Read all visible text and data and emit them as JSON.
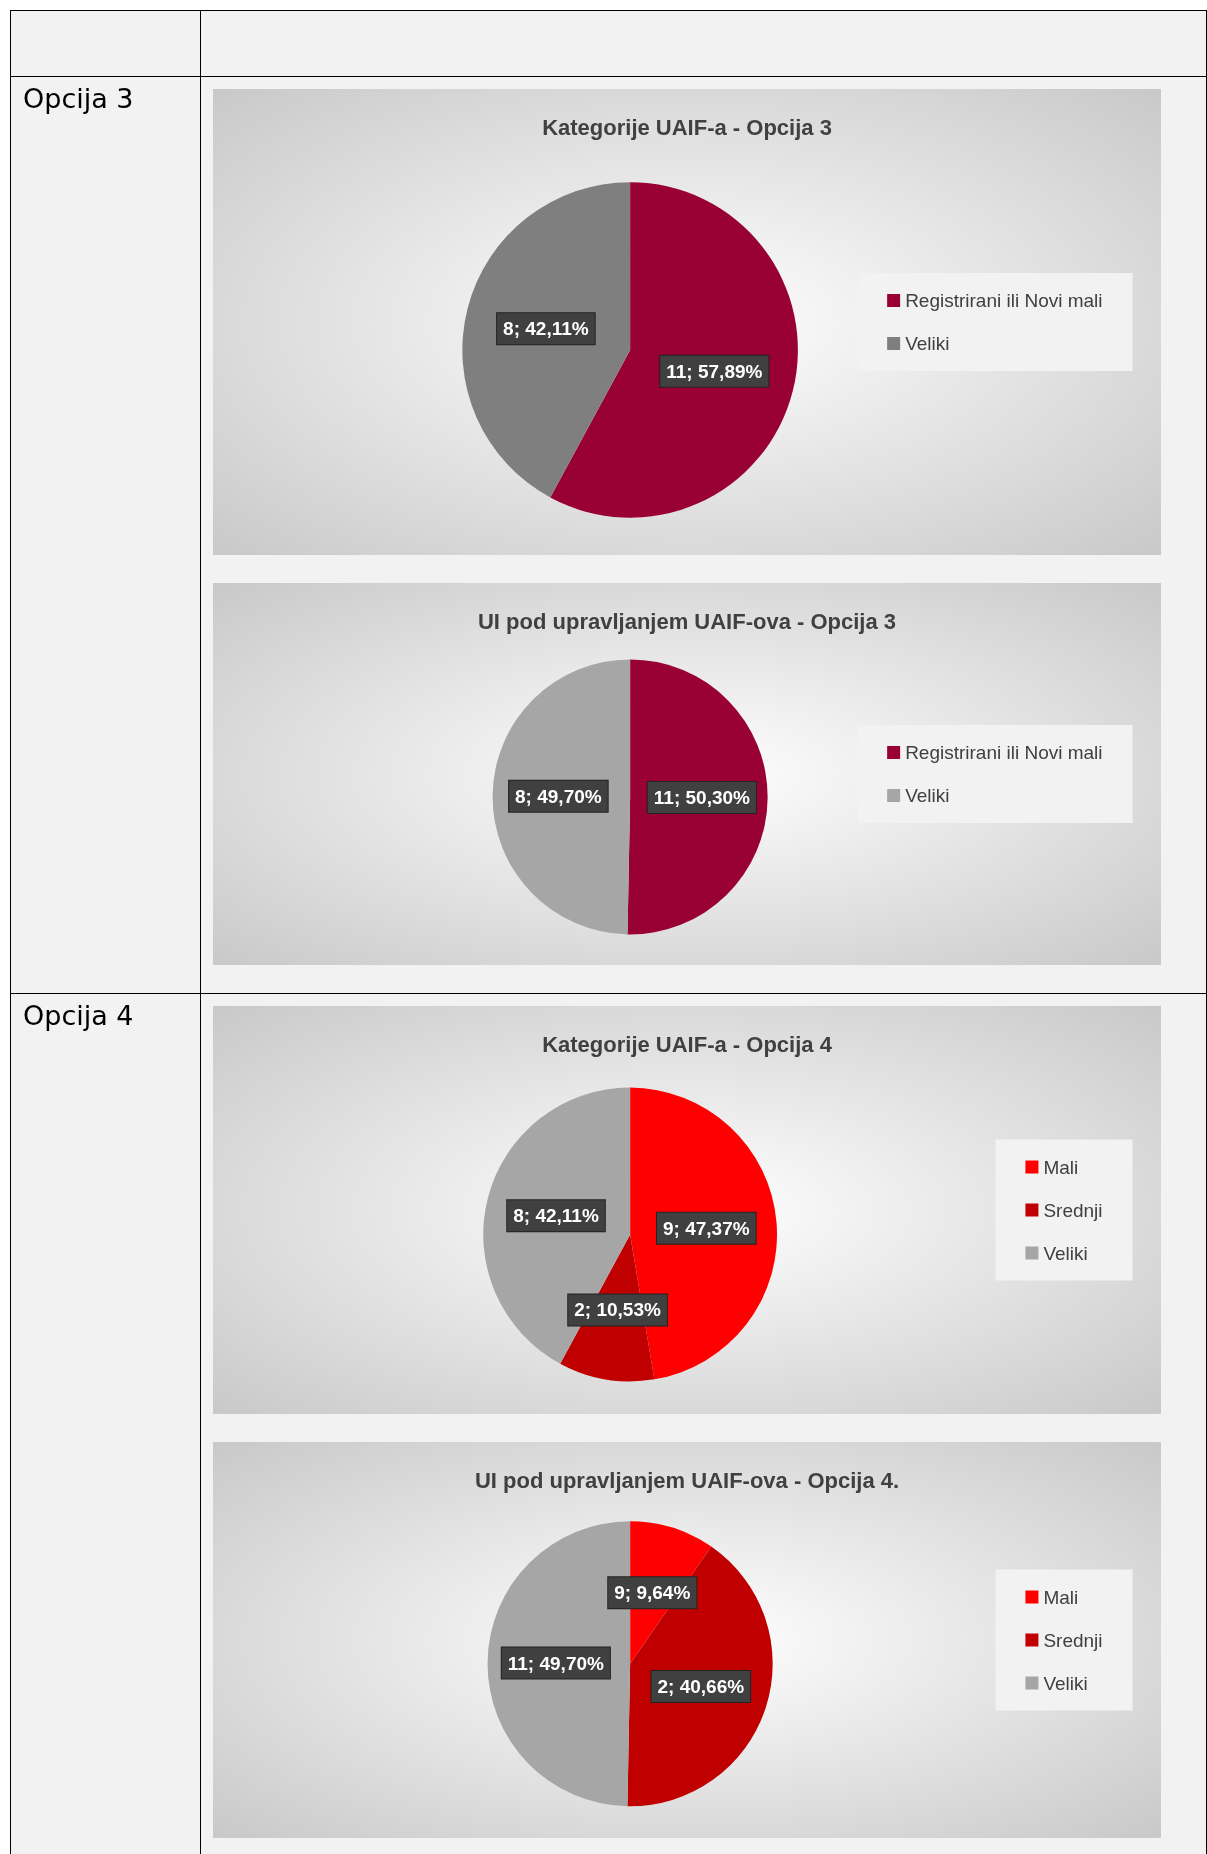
{
  "chart_data": [
    {
      "type": "pie",
      "title": "Kategorije UAIF-a - Opcija 3",
      "annotations": [
        "Opcija 3"
      ],
      "categories": [
        "Registrirani ili Novi mali",
        "Veliki"
      ],
      "values": [
        57.89,
        42.11
      ],
      "colors": [
        "#990033",
        "#7f7f7f"
      ],
      "value_labels": [
        "11; 57,89%",
        "8; 42,11%"
      ],
      "legend": "right"
    },
    {
      "type": "pie",
      "title": "UI pod upravljanjem UAIF-ova - Opcija 3",
      "categories": [
        "Registrirani ili Novi mali",
        "Veliki"
      ],
      "values": [
        50.3,
        49.7
      ],
      "colors": [
        "#990033",
        "#a6a6a6"
      ],
      "value_labels": [
        "11; 50,30%",
        "8; 49,70%"
      ],
      "legend": "right"
    },
    {
      "type": "pie",
      "title": "Kategorije UAIF-a - Opcija 4",
      "annotations": [
        "Opcija 4"
      ],
      "categories": [
        "Mali",
        "Srednji",
        "Veliki"
      ],
      "values": [
        47.37,
        10.53,
        42.11
      ],
      "colors": [
        "#ff0000",
        "#c00000",
        "#a6a6a6"
      ],
      "value_labels": [
        "9; 47,37%",
        "2; 10,53%",
        "8; 42,11%"
      ],
      "legend": "right"
    },
    {
      "type": "pie",
      "title": "UI pod upravljanjem UAIF-ova - Opcija 4.",
      "categories": [
        "Mali",
        "Srednji",
        "Veliki"
      ],
      "values": [
        9.64,
        40.66,
        49.7
      ],
      "colors": [
        "#ff0000",
        "#c00000",
        "#a6a6a6"
      ],
      "value_labels": [
        "9; 9,64%",
        "2; 40,66%",
        "11; 49,70%"
      ],
      "legend": "right"
    }
  ]
}
